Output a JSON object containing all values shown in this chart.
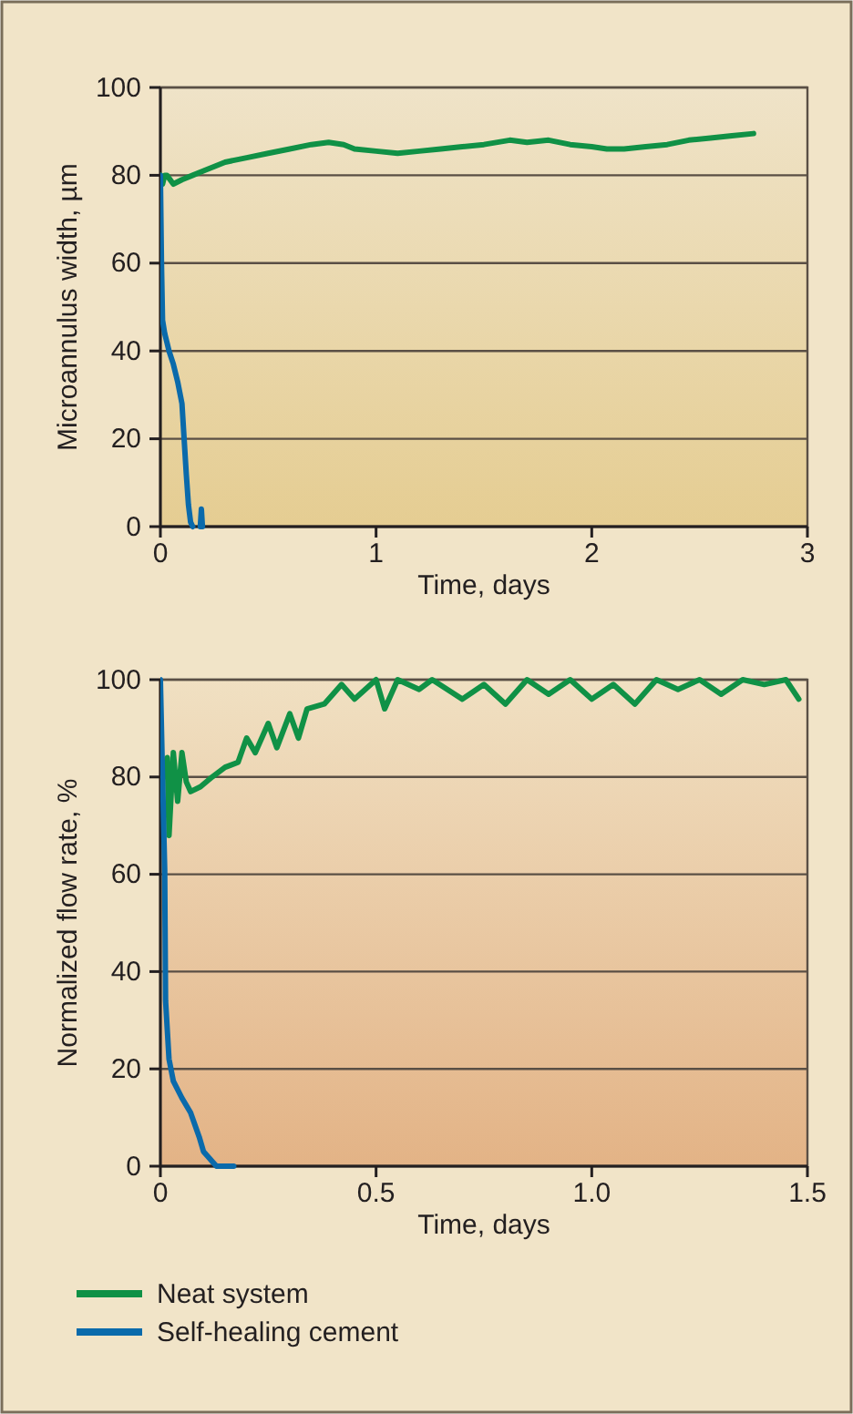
{
  "chart_data": [
    {
      "type": "line",
      "xlabel": "Time, days",
      "ylabel": "Microannulus width, µm",
      "xlim": [
        0,
        3
      ],
      "ylim": [
        0,
        100
      ],
      "xticks": [
        0,
        1,
        2,
        3
      ],
      "yticks": [
        0,
        20,
        40,
        60,
        80,
        100
      ],
      "grid": "y",
      "legend": false,
      "line_style": "solid",
      "marker": "none",
      "series": [
        {
          "color": "#109146",
          "x": [
            0,
            0.01,
            0.02,
            0.03,
            0.06,
            0.1,
            0.15,
            0.2,
            0.25,
            0.3,
            0.4,
            0.5,
            0.6,
            0.7,
            0.78,
            0.85,
            0.9,
            1.0,
            1.1,
            1.2,
            1.3,
            1.4,
            1.5,
            1.62,
            1.7,
            1.8,
            1.9,
            2.0,
            2.07,
            2.15,
            2.25,
            2.35,
            2.45,
            2.55,
            2.65,
            2.75
          ],
          "values": [
            80,
            78,
            80,
            80,
            78,
            79,
            80,
            81,
            82,
            83,
            84,
            85,
            86,
            87,
            87.5,
            87,
            86,
            85.5,
            85,
            85.5,
            86,
            86.5,
            87,
            88,
            87.5,
            88,
            87,
            86.5,
            86,
            86,
            86.5,
            87,
            88,
            88.5,
            89,
            89.5
          ]
        },
        {
          "color": "#0a6aab",
          "x": [
            0,
            0.005,
            0.01,
            0.02,
            0.03,
            0.04,
            0.06,
            0.08,
            0.1,
            0.11,
            0.12,
            0.13,
            0.14,
            0.15,
            null,
            0.185,
            0.19,
            0.195
          ],
          "values": [
            80,
            60,
            47,
            44,
            42,
            40,
            37,
            33,
            28,
            20,
            12,
            5,
            1,
            0,
            null,
            0,
            4,
            0
          ]
        }
      ]
    },
    {
      "type": "line",
      "xlabel": "Time, days",
      "ylabel": "Normalized flow rate, %",
      "xlim": [
        0,
        1.5
      ],
      "ylim": [
        0,
        100
      ],
      "xticks": [
        0,
        {
          "value": 0.5,
          "label": "0.5"
        },
        {
          "value": 1,
          "label": "1.0"
        },
        1.5
      ],
      "yticks": [
        0,
        20,
        40,
        60,
        80,
        100
      ],
      "grid": "y",
      "legend": "bottom",
      "line_style": "solid",
      "marker": "none",
      "series": [
        {
          "name": "Neat system",
          "color": "#109146",
          "x": [
            0,
            0.008,
            0.016,
            0.02,
            0.03,
            0.04,
            0.05,
            0.06,
            0.07,
            0.093,
            0.12,
            0.15,
            0.18,
            0.2,
            0.22,
            0.25,
            0.27,
            0.3,
            0.32,
            0.34,
            0.38,
            0.42,
            0.45,
            0.5,
            0.52,
            0.55,
            0.6,
            0.63,
            0.7,
            0.75,
            0.8,
            0.85,
            0.9,
            0.95,
            1.0,
            1.05,
            1.1,
            1.15,
            1.2,
            1.25,
            1.3,
            1.35,
            1.4,
            1.45,
            1.48
          ],
          "values": [
            84,
            80,
            84,
            68,
            85,
            75,
            85,
            79,
            77,
            78,
            80,
            82,
            83,
            88,
            85,
            91,
            86,
            93,
            88,
            94,
            95,
            99,
            96,
            100,
            94,
            100,
            98,
            100,
            96,
            99,
            95,
            100,
            97,
            100,
            96,
            99,
            95,
            100,
            98,
            100,
            97,
            100,
            99,
            100,
            96
          ]
        },
        {
          "name": "Self-healing cement",
          "color": "#0a6aab",
          "x": [
            0,
            0.005,
            0.01,
            0.012,
            0.02,
            0.03,
            0.05,
            0.07,
            0.09,
            0.1,
            0.12,
            0.13,
            0.15,
            0.17
          ],
          "values": [
            100,
            80,
            61,
            34,
            22,
            17.5,
            14,
            11,
            6,
            3,
            1,
            0,
            0,
            0
          ]
        }
      ]
    }
  ]
}
